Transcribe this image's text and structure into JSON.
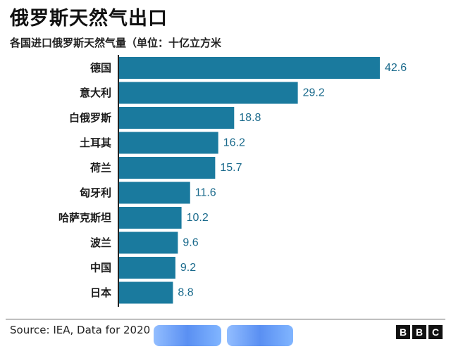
{
  "header": {
    "title": "俄罗斯天然气出口",
    "subtitle": "各国进口俄罗斯天然气量（单位：十亿立方米"
  },
  "footer": {
    "source": "Source: IEA, Data for 2020",
    "logo_letters": [
      "B",
      "B",
      "C"
    ]
  },
  "colors": {
    "bar": "#1a7a9e",
    "value_label": "#1a6a8c",
    "axis": "#222222"
  },
  "chart_data": {
    "type": "bar",
    "orientation": "horizontal",
    "title": "俄罗斯天然气出口",
    "subtitle": "各国进口俄罗斯天然气量（单位：十亿立方米",
    "categories": [
      "德国",
      "意大利",
      "白俄罗斯",
      "土耳其",
      "荷兰",
      "匈牙利",
      "哈萨克斯坦",
      "波兰",
      "中国",
      "日本"
    ],
    "values": [
      42.6,
      29.2,
      18.8,
      16.2,
      15.7,
      11.6,
      10.2,
      9.6,
      9.2,
      8.8
    ],
    "xlim": [
      0,
      42.6
    ],
    "grid": false,
    "legend": "none"
  }
}
